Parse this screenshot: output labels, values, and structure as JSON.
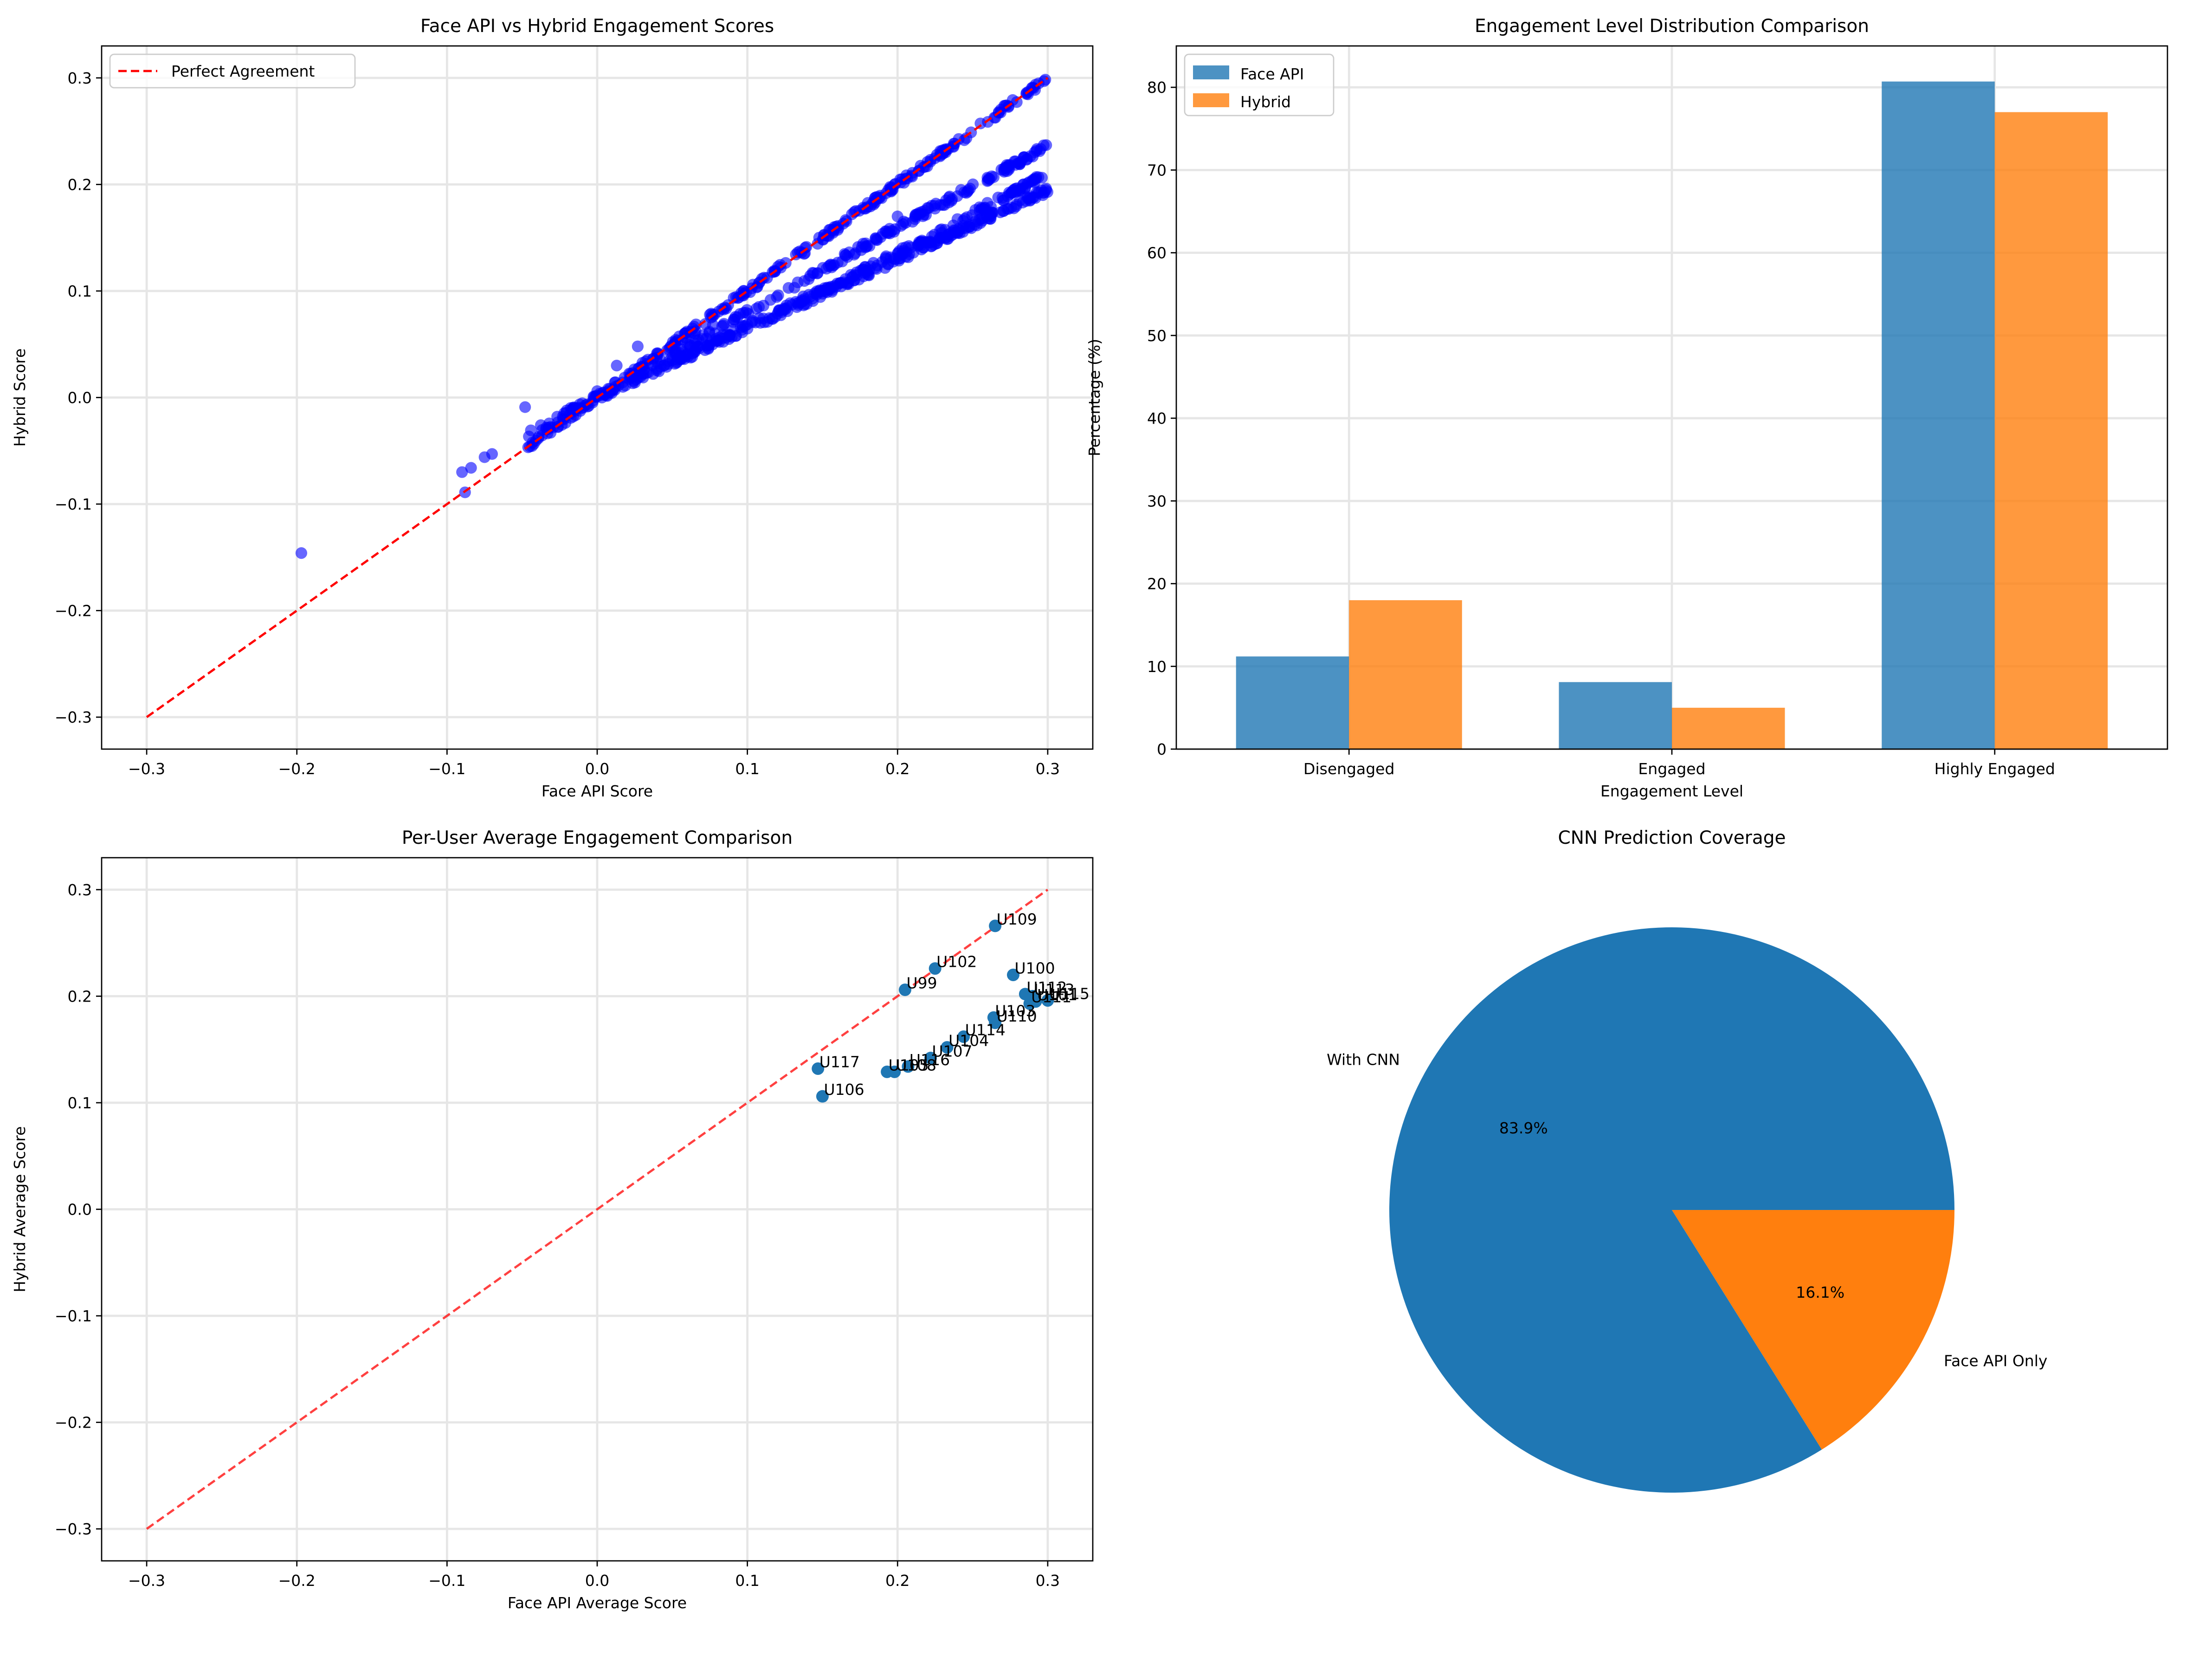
{
  "chart_data": [
    {
      "type": "scatter",
      "title": "Face API vs Hybrid Engagement Scores",
      "xlabel": "Face API Score",
      "ylabel": "Hybrid Score",
      "xlim": [
        -0.33,
        0.33
      ],
      "ylim": [
        -0.33,
        0.33
      ],
      "xticks": [
        -0.3,
        -0.2,
        -0.1,
        0.0,
        0.1,
        0.2,
        0.3
      ],
      "yticks": [
        -0.3,
        -0.2,
        -0.1,
        0.0,
        0.1,
        0.2,
        0.3
      ],
      "grid": true,
      "legend": {
        "placement": "upper-left",
        "entries": [
          "Perfect Agreement"
        ]
      },
      "reference_line": {
        "name": "Perfect Agreement",
        "x": [
          -0.3,
          0.3
        ],
        "y": [
          -0.3,
          0.3
        ],
        "color": "#ff0000",
        "style": "dashed"
      },
      "point_color": "#0000ff",
      "series_shape": [
        {
          "points": [
            [
              -0.048,
              -0.048
            ],
            [
              0.0,
              0.0
            ],
            [
              0.05,
              0.05
            ],
            [
              0.1,
              0.1
            ],
            [
              0.15,
              0.15
            ],
            [
              0.2,
              0.2
            ],
            [
              0.25,
              0.25
            ],
            [
              0.3,
              0.3
            ]
          ]
        },
        {
          "points": [
            [
              -0.05,
              -0.04
            ],
            [
              0.0,
              0.0
            ],
            [
              0.1,
              0.08
            ],
            [
              0.2,
              0.16
            ],
            [
              0.3,
              0.236
            ]
          ]
        },
        {
          "points": [
            [
              -0.05,
              -0.035
            ],
            [
              0.0,
              0.0
            ],
            [
              0.1,
              0.067
            ],
            [
              0.2,
              0.135
            ],
            [
              0.3,
              0.21
            ]
          ]
        },
        {
          "points": [
            [
              0.0,
              0.0
            ],
            [
              0.1,
              0.065
            ],
            [
              0.2,
              0.13
            ],
            [
              0.3,
              0.195
            ]
          ]
        }
      ],
      "outliers": [
        [
          -0.197,
          -0.146
        ],
        [
          -0.09,
          -0.07
        ],
        [
          -0.088,
          -0.089
        ],
        [
          -0.084,
          -0.066
        ],
        [
          -0.075,
          -0.056
        ],
        [
          -0.07,
          -0.053
        ],
        [
          -0.048,
          -0.009
        ],
        [
          0.0,
          0.006
        ],
        [
          0.013,
          0.03
        ],
        [
          0.027,
          0.048
        ],
        [
          0.03,
          0.022
        ],
        [
          0.05,
          0.035
        ],
        [
          0.06,
          0.05
        ],
        [
          0.065,
          0.06
        ],
        [
          0.07,
          0.055
        ],
        [
          0.077,
          0.068
        ],
        [
          0.2,
          0.17
        ],
        [
          0.21,
          0.165
        ],
        [
          0.22,
          0.178
        ]
      ]
    },
    {
      "type": "bar",
      "title": "Engagement Level Distribution Comparison",
      "xlabel": "Engagement Level",
      "ylabel": "Percentage (%)",
      "categories": [
        "Disengaged",
        "Engaged",
        "Highly Engaged"
      ],
      "series": [
        {
          "name": "Face API",
          "values": [
            11.2,
            8.1,
            80.7
          ],
          "color": "#1f77b4"
        },
        {
          "name": "Hybrid",
          "values": [
            18.0,
            5.0,
            77.0
          ],
          "color": "#ff7f0e"
        }
      ],
      "ylim": [
        0,
        85
      ],
      "yticks": [
        0,
        10,
        20,
        30,
        40,
        50,
        60,
        70,
        80
      ],
      "grid": true,
      "legend": {
        "placement": "upper-left"
      }
    },
    {
      "type": "scatter",
      "title": "Per-User Average Engagement Comparison",
      "xlabel": "Face API Average Score",
      "ylabel": "Hybrid Average Score",
      "xlim": [
        -0.33,
        0.33
      ],
      "ylim": [
        -0.33,
        0.33
      ],
      "xticks": [
        -0.3,
        -0.2,
        -0.1,
        0.0,
        0.1,
        0.2,
        0.3
      ],
      "yticks": [
        -0.3,
        -0.2,
        -0.1,
        0.0,
        0.1,
        0.2,
        0.3
      ],
      "grid": true,
      "reference_line": {
        "x": [
          -0.3,
          0.3
        ],
        "y": [
          -0.3,
          0.3
        ],
        "color": "#ff0000",
        "style": "dashed"
      },
      "point_color": "#1f77b4",
      "points": [
        {
          "label": "U109",
          "x": 0.265,
          "y": 0.266
        },
        {
          "label": "U102",
          "x": 0.225,
          "y": 0.226
        },
        {
          "label": "U100",
          "x": 0.277,
          "y": 0.22
        },
        {
          "label": "U99",
          "x": 0.205,
          "y": 0.206
        },
        {
          "label": "U112",
          "x": 0.285,
          "y": 0.202
        },
        {
          "label": "U113",
          "x": 0.29,
          "y": 0.2
        },
        {
          "label": "U115",
          "x": 0.3,
          "y": 0.196
        },
        {
          "label": "U101",
          "x": 0.292,
          "y": 0.195
        },
        {
          "label": "U111",
          "x": 0.288,
          "y": 0.193
        },
        {
          "label": "U103",
          "x": 0.264,
          "y": 0.18
        },
        {
          "label": "U110",
          "x": 0.265,
          "y": 0.175
        },
        {
          "label": "U114",
          "x": 0.244,
          "y": 0.162
        },
        {
          "label": "U104",
          "x": 0.233,
          "y": 0.152
        },
        {
          "label": "U107",
          "x": 0.222,
          "y": 0.142
        },
        {
          "label": "U116",
          "x": 0.207,
          "y": 0.134
        },
        {
          "label": "U108",
          "x": 0.198,
          "y": 0.129
        },
        {
          "label": "U105",
          "x": 0.193,
          "y": 0.129
        },
        {
          "label": "U117",
          "x": 0.147,
          "y": 0.132
        },
        {
          "label": "U106",
          "x": 0.15,
          "y": 0.106
        }
      ]
    },
    {
      "type": "pie",
      "title": "CNN Prediction Coverage",
      "slices": [
        {
          "label": "With CNN",
          "value": 83.9,
          "pct_label": "83.9%",
          "color": "#1f77b4"
        },
        {
          "label": "Face API Only",
          "value": 16.1,
          "pct_label": "16.1%",
          "color": "#ff7f0e"
        }
      ]
    }
  ]
}
